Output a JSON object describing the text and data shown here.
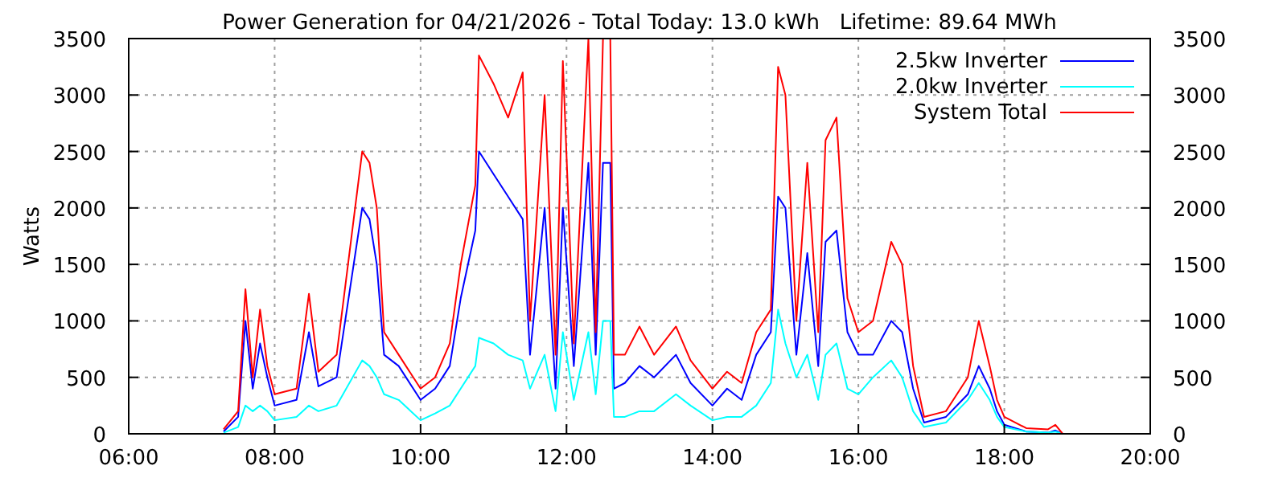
{
  "chart_data": {
    "type": "line",
    "title": "Power Generation for 04/21/2026 - Total Today: 13.0 kWh   Lifetime: 89.64 MWh",
    "ylabel": "Watts",
    "x": [
      7.3,
      7.5,
      7.6,
      7.7,
      7.8,
      7.9,
      8.0,
      8.3,
      8.47,
      8.6,
      8.85,
      9.2,
      9.3,
      9.4,
      9.5,
      9.7,
      10.0,
      10.2,
      10.4,
      10.55,
      10.75,
      10.8,
      11.0,
      11.2,
      11.4,
      11.5,
      11.7,
      11.85,
      11.95,
      12.1,
      12.3,
      12.4,
      12.5,
      12.6,
      12.65,
      12.8,
      13.0,
      13.2,
      13.5,
      13.7,
      14.0,
      14.2,
      14.4,
      14.6,
      14.8,
      14.9,
      15.0,
      15.15,
      15.3,
      15.45,
      15.55,
      15.7,
      15.85,
      16.0,
      16.2,
      16.45,
      16.6,
      16.75,
      16.9,
      17.2,
      17.5,
      17.65,
      17.8,
      17.9,
      18.0,
      18.3,
      18.6,
      18.7,
      18.8
    ],
    "series": [
      {
        "name": "2.5kw Inverter",
        "color": "#0000ff",
        "values": [
          20,
          150,
          1000,
          400,
          800,
          500,
          250,
          300,
          900,
          420,
          500,
          2000,
          1900,
          1500,
          700,
          600,
          300,
          400,
          600,
          1200,
          1800,
          2500,
          2300,
          2100,
          1900,
          700,
          2000,
          400,
          2000,
          600,
          2400,
          700,
          2400,
          2400,
          400,
          450,
          600,
          500,
          700,
          450,
          250,
          400,
          300,
          700,
          900,
          2100,
          2000,
          700,
          1600,
          600,
          1700,
          1800,
          900,
          700,
          700,
          1000,
          900,
          400,
          100,
          150,
          350,
          600,
          400,
          200,
          80,
          20,
          10,
          30,
          0
        ]
      },
      {
        "name": "2.0kw Inverter",
        "color": "#00ffff",
        "values": [
          10,
          60,
          250,
          200,
          250,
          200,
          120,
          150,
          250,
          200,
          250,
          650,
          600,
          500,
          350,
          300,
          120,
          180,
          250,
          400,
          600,
          850,
          800,
          700,
          650,
          400,
          700,
          200,
          900,
          300,
          900,
          350,
          1000,
          1000,
          150,
          150,
          200,
          200,
          350,
          250,
          120,
          150,
          150,
          250,
          450,
          1100,
          800,
          500,
          700,
          300,
          700,
          800,
          400,
          350,
          500,
          650,
          500,
          200,
          60,
          100,
          300,
          450,
          300,
          150,
          60,
          20,
          10,
          20,
          0
        ]
      },
      {
        "name": "System Total",
        "color": "#ff0000",
        "values": [
          40,
          200,
          1280,
          500,
          1100,
          600,
          350,
          400,
          1240,
          550,
          700,
          2500,
          2400,
          2000,
          900,
          700,
          400,
          500,
          800,
          1500,
          2200,
          3350,
          3100,
          2800,
          3200,
          1000,
          3000,
          700,
          3300,
          800,
          3500,
          900,
          3500,
          3500,
          700,
          700,
          950,
          700,
          950,
          650,
          400,
          550,
          450,
          900,
          1100,
          3250,
          3000,
          1000,
          2400,
          900,
          2600,
          2800,
          1200,
          900,
          1000,
          1700,
          1500,
          600,
          150,
          200,
          500,
          1000,
          600,
          300,
          150,
          50,
          40,
          80,
          0
        ]
      }
    ],
    "xlim": [
      6,
      20
    ],
    "xticks": [
      {
        "value": 6,
        "label": "06:00"
      },
      {
        "value": 8,
        "label": "08:00"
      },
      {
        "value": 10,
        "label": "10:00"
      },
      {
        "value": 12,
        "label": "12:00"
      },
      {
        "value": 14,
        "label": "14:00"
      },
      {
        "value": 16,
        "label": "16:00"
      },
      {
        "value": 18,
        "label": "18:00"
      },
      {
        "value": 20,
        "label": "20:00"
      }
    ],
    "ylim": [
      0,
      3500
    ],
    "yticks": [
      0,
      500,
      1000,
      1500,
      2000,
      2500,
      3000,
      3500
    ],
    "y2lim": [
      0,
      3500
    ],
    "y2ticks": [
      0,
      500,
      1000,
      1500,
      2000,
      2500,
      3000,
      3500
    ],
    "grid": true,
    "legend": "top right"
  }
}
